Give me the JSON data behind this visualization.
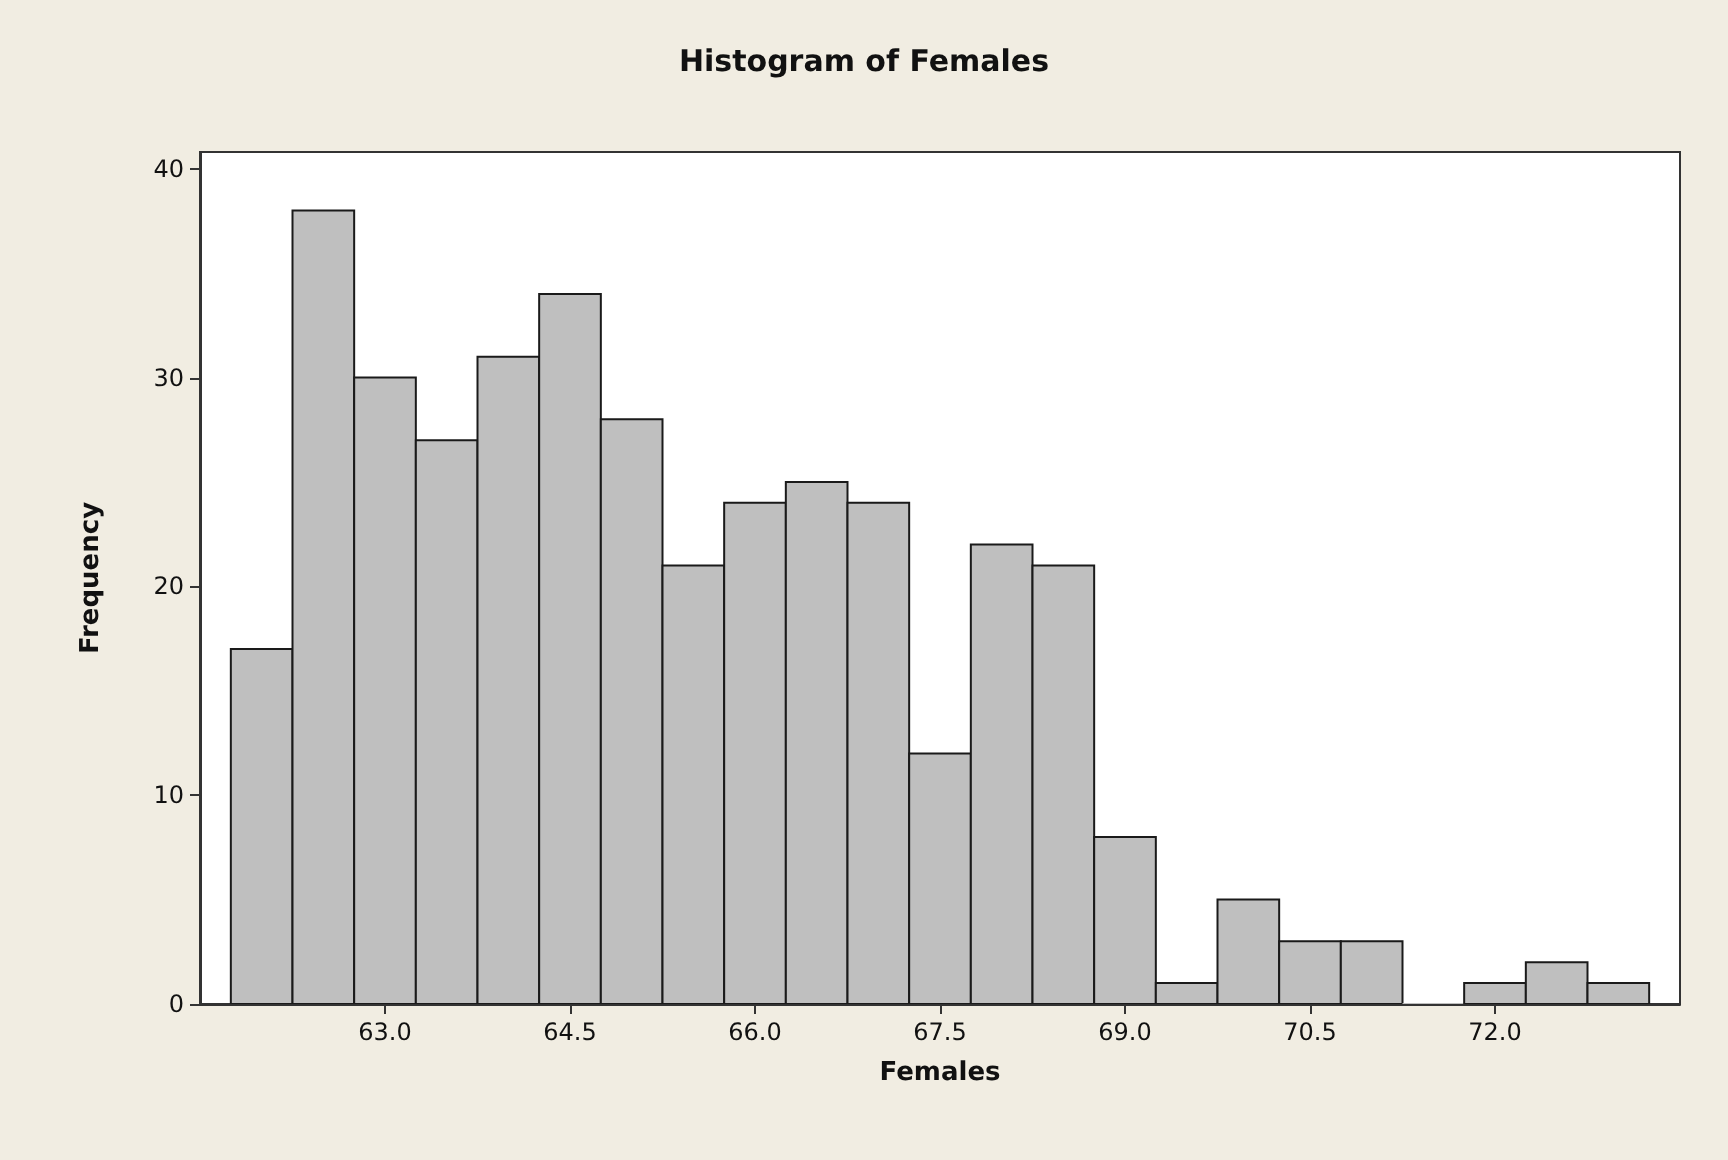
{
  "chart_data": {
    "type": "histogram",
    "title": "Histogram of Females",
    "xlabel": "Females",
    "ylabel": "Frequency",
    "bins": [
      61.75,
      62.25,
      62.75,
      63.25,
      63.75,
      64.25,
      64.75,
      65.25,
      65.75,
      66.25,
      66.75,
      67.25,
      67.75,
      68.25,
      68.75,
      69.25,
      69.75,
      70.25,
      70.75,
      71.25,
      71.75,
      72.25,
      72.75,
      73.25
    ],
    "values": [
      17,
      38,
      30,
      27,
      31,
      34,
      28,
      21,
      24,
      25,
      24,
      12,
      22,
      21,
      8,
      1,
      5,
      3,
      3,
      0,
      1,
      2,
      1
    ],
    "color": "#bfbfbf",
    "xlim": [
      61.5,
      73.5
    ],
    "xticks": [
      {
        "value": 63,
        "label": "63.0"
      },
      {
        "value": 64.5,
        "label": "64.5"
      },
      {
        "value": 66,
        "label": "66.0"
      },
      {
        "value": 67.5,
        "label": "67.5"
      },
      {
        "value": 69,
        "label": "69.0"
      },
      {
        "value": 70.5,
        "label": "70.5"
      },
      {
        "value": 72,
        "label": "72.0"
      }
    ],
    "ylim": [
      0,
      40.8
    ],
    "yticks": [
      0,
      10,
      20,
      30,
      40
    ],
    "grid": false
  }
}
